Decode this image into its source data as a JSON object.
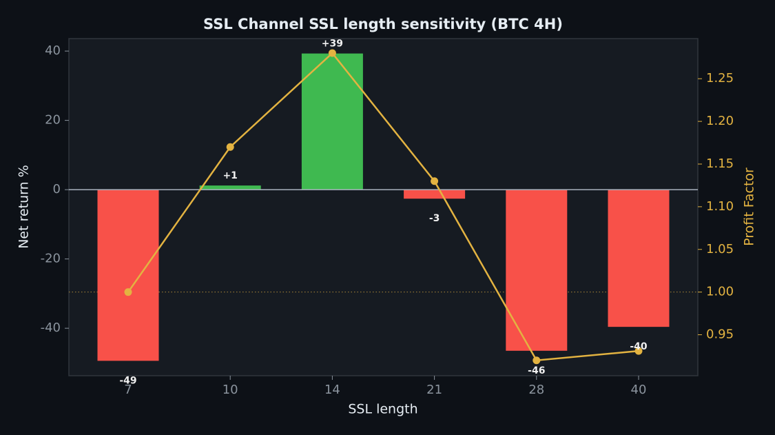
{
  "chart_data": {
    "type": "bar_line",
    "title": "SSL Channel SSL length sensitivity (BTC 4H)",
    "x_label": "SSL length",
    "y_label": "Net return %",
    "y2_label": "Profit Factor",
    "categories": [
      "7",
      "10",
      "14",
      "21",
      "28",
      "40"
    ],
    "ylim": [
      -53.7,
      43.6
    ],
    "yticks": [
      -40,
      -20,
      0,
      20,
      40
    ],
    "y2lim": [
      0.902,
      1.297
    ],
    "y2ticks": [
      0.95,
      {
        "value": 1.0,
        "label": "1.00"
      },
      1.05,
      {
        "value": 1.1,
        "label": "1.10"
      },
      1.15,
      {
        "value": 1.2,
        "label": "1.20"
      },
      1.25
    ],
    "y2_refline": 1.0,
    "series": [
      {
        "name": "Net return %",
        "type": "bar",
        "axis": "y",
        "colors": [
          "#f85149",
          "#3fb950",
          "#3fb950",
          "#f85149",
          "#f85149",
          "#f85149"
        ],
        "values": [
          -49.4,
          1.2,
          39.3,
          -2.6,
          -46.5,
          -39.6
        ],
        "value_labels": [
          "-49",
          "+1",
          "+39",
          "-3",
          "-46",
          "-40"
        ]
      },
      {
        "name": "Profit Factor",
        "type": "line",
        "axis": "y2",
        "color": "#e3b341",
        "values": [
          1.0,
          1.17,
          1.28,
          1.13,
          0.92,
          0.931
        ]
      }
    ]
  }
}
